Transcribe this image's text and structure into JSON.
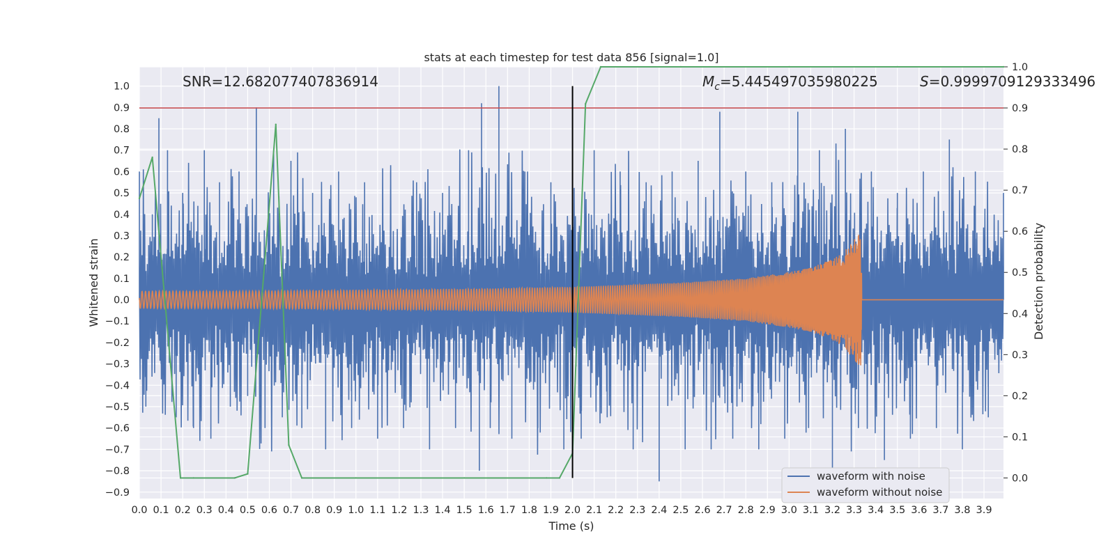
{
  "chart_data": {
    "type": "line",
    "title": "stats at each timestep for test data 856 [signal=1.0]",
    "xlabel": "Time (s)",
    "ylabel_left": "Whitened strain",
    "ylabel_right": "Detection probability",
    "xlim": [
      0.0,
      3.99
    ],
    "ylim_left": [
      -0.93,
      1.09
    ],
    "ylim_right": [
      -0.05,
      1.0
    ],
    "x_ticks": [
      "0.0",
      "0.1",
      "0.2",
      "0.3",
      "0.4",
      "0.5",
      "0.6",
      "0.7",
      "0.8",
      "0.9",
      "1.0",
      "1.1",
      "1.2",
      "1.3",
      "1.4",
      "1.5",
      "1.6",
      "1.7",
      "1.8",
      "1.9",
      "2.0",
      "2.1",
      "2.2",
      "2.3",
      "2.4",
      "2.5",
      "2.6",
      "2.7",
      "2.8",
      "2.9",
      "3.0",
      "3.1",
      "3.2",
      "3.3",
      "3.4",
      "3.5",
      "3.6",
      "3.7",
      "3.8",
      "3.9"
    ],
    "y_ticks_left": [
      "1.0",
      "0.9",
      "0.8",
      "0.7",
      "0.6",
      "0.5",
      "0.4",
      "0.3",
      "0.2",
      "0.1",
      "0.0",
      "−0.1",
      "−0.2",
      "−0.3",
      "−0.4",
      "−0.5",
      "−0.6",
      "−0.7",
      "−0.8",
      "−0.9"
    ],
    "y_ticks_right": [
      "1.0",
      "0.9",
      "0.8",
      "0.7",
      "0.6",
      "0.5",
      "0.4",
      "0.3",
      "0.2",
      "0.1",
      "0.0"
    ],
    "grid": true,
    "legend_position": "lower right",
    "annotations": {
      "snr": "SNR=12.682077407836914",
      "mc_symbol": "M",
      "mc_sub": "c",
      "mc_value": "=5.445497035980225",
      "s_symbol": "S",
      "s_value": "=0.9999709129333496"
    },
    "threshold_probability": 0.9,
    "marker_time": 2.0,
    "series": [
      {
        "name": "waveform with noise",
        "color": "#4c72b0",
        "axis": "left",
        "description_type": "noisy strain, approx amplitude ±0.8",
        "x": [
          0.0,
          0.03,
          0.06,
          0.09,
          0.1,
          0.13,
          0.17,
          0.2,
          0.25,
          0.3,
          0.33,
          0.37,
          0.42,
          0.46,
          0.5,
          0.54,
          0.58,
          0.62,
          0.66,
          0.7,
          0.75,
          0.8,
          0.86,
          0.92,
          0.98,
          1.04,
          1.1,
          1.16,
          1.22,
          1.28,
          1.34,
          1.4,
          1.46,
          1.52,
          1.57,
          1.58,
          1.62,
          1.66,
          1.72,
          1.78,
          1.84,
          1.9,
          1.96,
          2.0,
          2.04,
          2.1,
          2.16,
          2.22,
          2.28,
          2.34,
          2.4,
          2.46,
          2.52,
          2.58,
          2.64,
          2.68,
          2.74,
          2.8,
          2.86,
          2.92,
          2.98,
          3.04,
          3.09,
          3.14,
          3.2,
          3.26,
          3.32,
          3.38,
          3.44,
          3.5,
          3.56,
          3.62,
          3.68,
          3.74,
          3.8,
          3.86,
          3.92,
          3.99
        ],
        "y": [
          0.6,
          -0.5,
          0.4,
          0.85,
          -0.3,
          0.7,
          -0.55,
          0.5,
          -0.6,
          0.7,
          -0.65,
          0.55,
          -0.5,
          0.6,
          -0.45,
          0.9,
          -0.6,
          0.7,
          -0.55,
          0.65,
          -0.6,
          0.5,
          -0.7,
          0.6,
          -0.6,
          0.55,
          -0.65,
          0.6,
          -0.6,
          0.55,
          -0.7,
          0.5,
          -0.6,
          0.7,
          -0.8,
          0.92,
          -0.6,
          1.0,
          -0.65,
          0.6,
          -0.6,
          0.55,
          -0.7,
          0.6,
          -0.65,
          0.7,
          -0.55,
          0.6,
          -0.7,
          0.55,
          -0.85,
          0.6,
          -0.7,
          0.65,
          -0.7,
          0.88,
          -0.65,
          0.6,
          -0.7,
          0.55,
          -0.65,
          0.88,
          -0.6,
          0.7,
          -0.85,
          0.8,
          -0.6,
          0.6,
          -0.75,
          0.5,
          -0.65,
          0.6,
          -0.6,
          0.75,
          -0.7,
          0.6,
          -0.55,
          0.5
        ]
      },
      {
        "name": "waveform without noise",
        "color": "#dd8452",
        "axis": "left",
        "description_type": "inspiral chirp ending at ~3.33 s",
        "x": [
          0.0,
          0.5,
          1.0,
          1.5,
          2.0,
          2.5,
          2.8,
          3.0,
          3.1,
          3.2,
          3.25,
          3.3,
          3.33,
          3.35,
          3.99
        ],
        "y": [
          0.04,
          0.04,
          0.045,
          0.05,
          0.06,
          0.08,
          0.1,
          0.13,
          0.15,
          0.19,
          0.22,
          0.28,
          0.32,
          0.0,
          0.0
        ]
      },
      {
        "name": "",
        "color": "#55a868",
        "axis": "right",
        "description_type": "detection probability per timestep",
        "x": [
          0.0,
          0.06,
          0.19,
          0.25,
          0.44,
          0.5,
          0.63,
          0.69,
          0.75,
          1.0,
          1.5,
          1.88,
          1.94,
          2.0,
          2.06,
          2.13,
          2.5,
          3.0,
          3.5,
          3.99
        ],
        "y": [
          0.68,
          0.78,
          0.0,
          0.0,
          0.0,
          0.01,
          0.86,
          0.08,
          0.0,
          0.0,
          0.0,
          0.0,
          0.0,
          0.06,
          0.91,
          1.0,
          1.0,
          1.0,
          1.0,
          1.0
        ]
      }
    ],
    "threshold_line_color": "#c44e52",
    "marker_line_color": "#000000"
  }
}
